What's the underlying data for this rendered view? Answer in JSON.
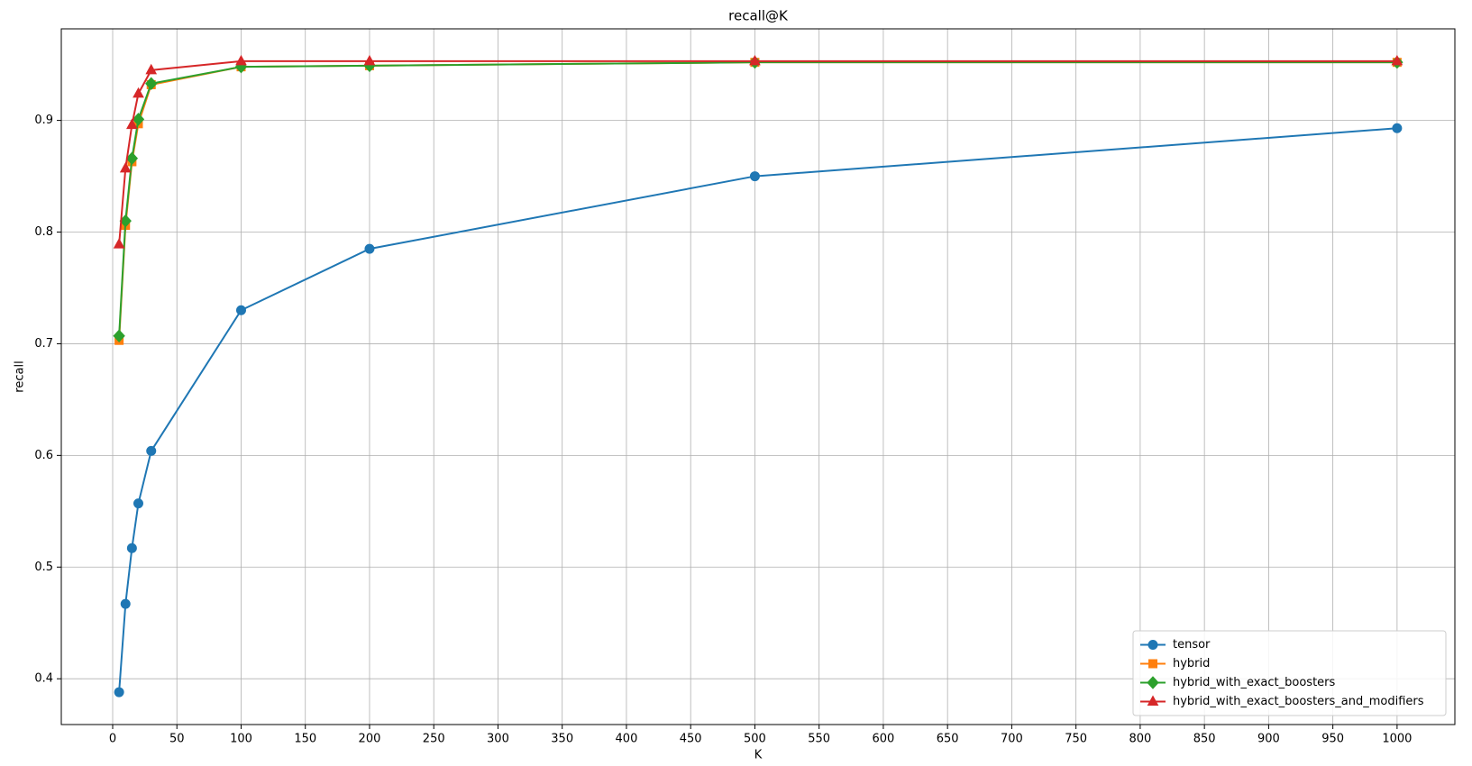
{
  "chart_data": {
    "type": "line",
    "title": "recall@K",
    "x_label": "K",
    "y_label": "recall",
    "x": [
      5,
      10,
      15,
      20,
      30,
      100,
      200,
      500,
      1000
    ],
    "series": [
      {
        "name": "tensor",
        "color": "#1f77b4",
        "marker": "circle",
        "values": [
          0.388,
          0.467,
          0.517,
          0.557,
          0.604,
          0.73,
          0.785,
          0.85,
          0.893
        ]
      },
      {
        "name": "hybrid",
        "color": "#ff7f0e",
        "marker": "square",
        "values": [
          0.703,
          0.806,
          0.863,
          0.897,
          0.932,
          0.948,
          0.949,
          0.952,
          0.952
        ]
      },
      {
        "name": "hybrid_with_exact_boosters",
        "color": "#2ca02c",
        "marker": "diamond",
        "values": [
          0.707,
          0.81,
          0.866,
          0.901,
          0.933,
          0.948,
          0.949,
          0.952,
          0.952
        ]
      },
      {
        "name": "hybrid_with_exact_boosters_and_modifiers",
        "color": "#d62728",
        "marker": "triangle",
        "values": [
          0.789,
          0.857,
          0.896,
          0.924,
          0.945,
          0.953,
          0.953,
          0.953,
          0.953
        ]
      }
    ],
    "xlim": [
      -40,
      1045
    ],
    "ylim": [
      0.359,
      0.982
    ],
    "xticks": [
      0,
      50,
      100,
      150,
      200,
      250,
      300,
      350,
      400,
      450,
      500,
      550,
      600,
      650,
      700,
      750,
      800,
      850,
      900,
      950,
      1000
    ],
    "yticks": [
      0.4,
      0.5,
      0.6,
      0.7,
      0.8,
      0.9
    ],
    "grid": true,
    "legend": "lower right"
  }
}
